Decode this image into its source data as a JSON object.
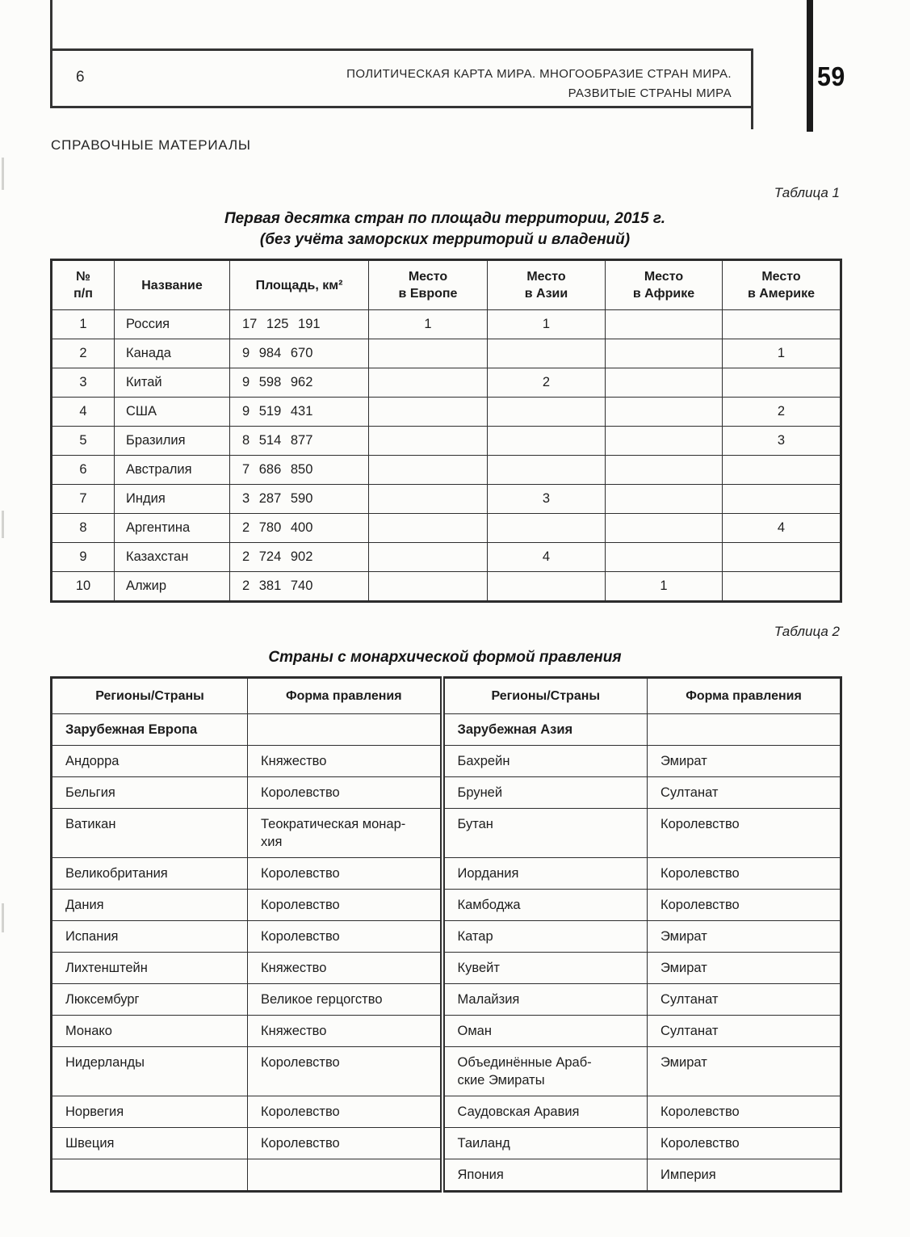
{
  "page": {
    "left_page_number": "6",
    "running_title_line1": "ПОЛИТИЧЕСКАЯ КАРТА МИРА. МНОГООБРАЗИЕ СТРАН МИРА.",
    "running_title_line2": "РАЗВИТЫЕ СТРАНЫ МИРА",
    "right_page_number": "59",
    "section_title": "СПРАВОЧНЫЕ МАТЕРИАЛЫ"
  },
  "table1": {
    "label": "Таблица 1",
    "title": "Первая десятка стран по площади территории, 2015 г.",
    "subtitle": "(без учёта заморских территорий и владений)",
    "headers": [
      "№\nп/п",
      "Название",
      "Площадь, км²",
      "Место\nв Европе",
      "Место\nв Азии",
      "Место\nв Африке",
      "Место\nв Америке"
    ],
    "rows": [
      [
        "1",
        "Россия",
        "17 125 191",
        "1",
        "1",
        "",
        ""
      ],
      [
        "2",
        "Канада",
        "9 984 670",
        "",
        "",
        "",
        "1"
      ],
      [
        "3",
        "Китай",
        "9 598 962",
        "",
        "2",
        "",
        ""
      ],
      [
        "4",
        "США",
        "9 519 431",
        "",
        "",
        "",
        "2"
      ],
      [
        "5",
        "Бразилия",
        "8 514 877",
        "",
        "",
        "",
        "3"
      ],
      [
        "6",
        "Австралия",
        "7 686 850",
        "",
        "",
        "",
        ""
      ],
      [
        "7",
        "Индия",
        "3 287 590",
        "",
        "3",
        "",
        ""
      ],
      [
        "8",
        "Аргентина",
        "2 780 400",
        "",
        "",
        "",
        "4"
      ],
      [
        "9",
        "Казахстан",
        "2 724 902",
        "",
        "4",
        "",
        ""
      ],
      [
        "10",
        "Алжир",
        "2 381 740",
        "",
        "",
        "1",
        ""
      ]
    ]
  },
  "table2": {
    "label": "Таблица 2",
    "title": "Страны с монархической формой правления",
    "headers": [
      "Регионы/Страны",
      "Форма правления",
      "Регионы/Страны",
      "Форма правления"
    ],
    "rows": [
      {
        "bold": true,
        "cells": [
          "Зарубежная Европа",
          "",
          "Зарубежная Азия",
          ""
        ]
      },
      {
        "cells": [
          "Андорра",
          "Княжество",
          "Бахрейн",
          "Эмират"
        ]
      },
      {
        "cells": [
          "Бельгия",
          "Королевство",
          "Бруней",
          "Султанат"
        ]
      },
      {
        "cells": [
          "Ватикан",
          "Теократическая монар-\nхия",
          "Бутан",
          "Королевство"
        ]
      },
      {
        "cells": [
          "Великобритания",
          "Королевство",
          "Иордания",
          "Королевство"
        ]
      },
      {
        "cells": [
          "Дания",
          "Королевство",
          "Камбоджа",
          "Королевство"
        ]
      },
      {
        "cells": [
          "Испания",
          "Королевство",
          "Катар",
          "Эмират"
        ]
      },
      {
        "cells": [
          "Лихтенштейн",
          "Княжество",
          "Кувейт",
          "Эмират"
        ]
      },
      {
        "cells": [
          "Люксембург",
          "Великое герцогство",
          "Малайзия",
          "Султанат"
        ]
      },
      {
        "cells": [
          "Монако",
          "Княжество",
          "Оман",
          "Султанат"
        ]
      },
      {
        "cells": [
          "Нидерланды",
          "Королевство",
          "Объединённые Араб-\nские Эмираты",
          "Эмират"
        ]
      },
      {
        "cells": [
          "Норвегия",
          "Королевство",
          "Саудовская Аравия",
          "Королевство"
        ]
      },
      {
        "cells": [
          "Швеция",
          "Королевство",
          "Таиланд",
          "Королевство"
        ]
      },
      {
        "cells": [
          "",
          "",
          "Япония",
          "Империя"
        ]
      }
    ]
  }
}
